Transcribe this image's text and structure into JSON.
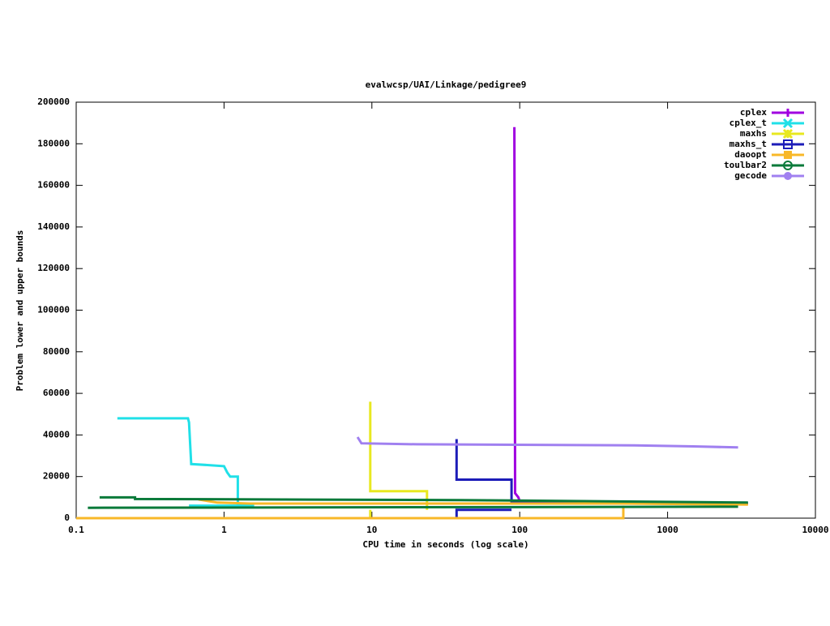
{
  "chart_data": {
    "type": "line",
    "title": "evalwcsp/UAI/Linkage/pedigree9",
    "xlabel": "CPU time in seconds (log scale)",
    "ylabel": "Problem lower and upper bounds",
    "xscale": "log",
    "xlim": [
      0.1,
      10000
    ],
    "xticks": [
      0.1,
      1,
      10,
      100,
      1000,
      10000
    ],
    "ylim": [
      0,
      200000
    ],
    "yticks": [
      0,
      20000,
      40000,
      60000,
      80000,
      100000,
      120000,
      140000,
      160000,
      180000,
      200000
    ],
    "legend": "upper right",
    "series": [
      {
        "name": "cplex",
        "color": "#a000e0",
        "x": [
          92,
          93,
          98,
          100,
          3500
        ],
        "values": [
          188000,
          12000,
          10000,
          8000,
          7000
        ]
      },
      {
        "name": "cplex_t",
        "color": "#20e0e8",
        "x": [
          0.19,
          0.57,
          0.58,
          0.6,
          0.79,
          1.0,
          1.05,
          1.1,
          1.24,
          1.24,
          4,
          null,
          0.58,
          1.6
        ],
        "values": [
          48000,
          48000,
          46000,
          26000,
          25500,
          25000,
          22000,
          20000,
          20000,
          7000,
          7000,
          null,
          6000,
          6000
        ]
      },
      {
        "name": "maxhs",
        "color": "#e8e820",
        "x": [
          9.75,
          9.75,
          23.6,
          23.6,
          null,
          9.75,
          9.75,
          500
        ],
        "values": [
          56000,
          13000,
          13000,
          4000,
          null,
          4000,
          0,
          0
        ]
      },
      {
        "name": "maxhs_t",
        "color": "#1c1cb8",
        "x": [
          37.4,
          37.4,
          88,
          88,
          3500,
          null,
          37.4,
          37.4,
          88
        ],
        "values": [
          38000,
          18500,
          18500,
          8000,
          7000,
          null,
          0,
          4000,
          4000
        ]
      },
      {
        "name": "daoopt",
        "color": "#f8b828",
        "x": [
          0.67,
          0.9,
          1.5,
          500,
          3500,
          null,
          0.1,
          502,
          502
        ],
        "values": [
          9000,
          7500,
          7000,
          7000,
          6500,
          null,
          0,
          0,
          6000
        ]
      },
      {
        "name": "toulbar2",
        "color": "#0a7a3a",
        "x": [
          0.144,
          0.25,
          0.25,
          40,
          3500,
          null,
          0.12,
          3000
        ],
        "values": [
          10000,
          10000,
          9200,
          8700,
          7500,
          null,
          5000,
          5500
        ]
      },
      {
        "name": "gecode",
        "color": "#a080f0",
        "x": [
          8,
          8.5,
          20,
          600,
          1500,
          3000
        ],
        "values": [
          39000,
          36000,
          35500,
          35000,
          34500,
          34000
        ]
      }
    ]
  }
}
